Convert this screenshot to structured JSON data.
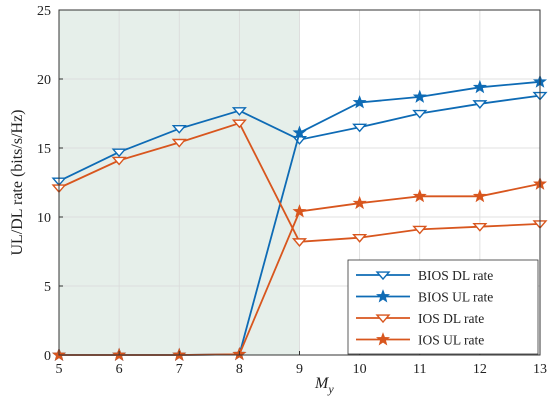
{
  "chart_data": {
    "type": "line",
    "xlabel": "M",
    "xlabel_sub": "y",
    "ylabel": "UL/DL rate (bits/s/Hz)",
    "xlim": [
      5,
      13
    ],
    "ylim": [
      0,
      25
    ],
    "x_ticks": [
      5,
      6,
      7,
      8,
      9,
      10,
      11,
      12,
      13
    ],
    "y_ticks": [
      0,
      5,
      10,
      15,
      20,
      25
    ],
    "grid": true,
    "legend_position": "bottom-right",
    "shaded_region": {
      "x": [
        5,
        9
      ],
      "color": "#e6efea"
    },
    "x": [
      5,
      6,
      7,
      8,
      9,
      10,
      11,
      12,
      13
    ],
    "series": [
      {
        "name": "BIOS DL rate",
        "color": "#0e6bb5",
        "marker": "triangle-down",
        "values": [
          12.6,
          14.7,
          16.4,
          17.7,
          15.6,
          16.5,
          17.5,
          18.2,
          18.8
        ]
      },
      {
        "name": "BIOS UL rate",
        "color": "#0e6bb5",
        "marker": "star",
        "values": [
          0.0,
          0.0,
          0.0,
          0.05,
          16.1,
          18.3,
          18.7,
          19.4,
          19.8
        ]
      },
      {
        "name": "IOS DL rate",
        "color": "#d8561e",
        "marker": "triangle-down",
        "values": [
          12.1,
          14.1,
          15.4,
          16.8,
          8.2,
          8.5,
          9.1,
          9.3,
          9.5
        ]
      },
      {
        "name": "IOS UL rate",
        "color": "#d8561e",
        "marker": "star",
        "values": [
          0.0,
          0.0,
          0.0,
          0.05,
          10.4,
          11.0,
          11.5,
          11.5,
          12.4
        ]
      }
    ]
  }
}
